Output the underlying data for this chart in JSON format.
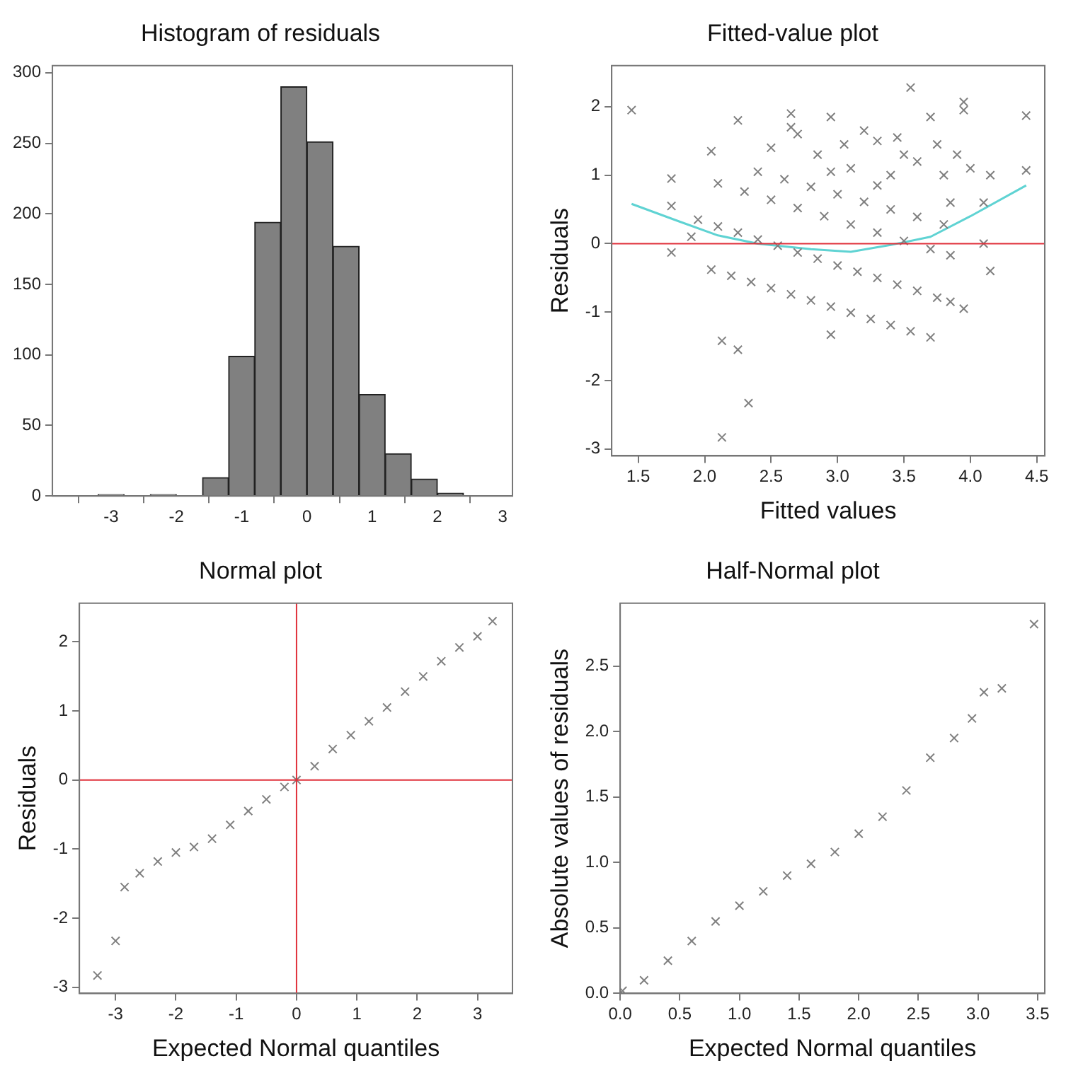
{
  "chart_data": [
    {
      "type": "histogram",
      "title": "Histogram of residuals",
      "color": "#808080",
      "bins": [
        -3.2,
        -2.8,
        -2.4,
        -2.0,
        -1.6,
        -1.2,
        -0.8,
        -0.4,
        0,
        0.4,
        0.8,
        1.2,
        1.6,
        2.0,
        2.4
      ],
      "values": [
        1,
        0,
        1,
        0,
        13,
        99,
        194,
        290,
        251,
        177,
        72,
        30,
        12,
        2
      ],
      "xlim": [
        -3.9,
        3.15
      ],
      "xticks": [
        -3,
        -2,
        -1,
        0,
        1,
        2,
        3
      ],
      "ylim": [
        0,
        305
      ],
      "yticks": [
        0,
        50,
        100,
        150,
        200,
        250,
        300
      ]
    },
    {
      "type": "scatter",
      "title": "Fitted-value plot",
      "xlabel": "Fitted values",
      "ylabel": "Residuals",
      "xlim": [
        1.3,
        4.56
      ],
      "xticks": [
        1.5,
        {
          "value": 2,
          "label": "2.0"
        },
        2.5,
        {
          "value": 3,
          "label": "3.0"
        },
        3.5,
        {
          "value": 4,
          "label": "4.0"
        },
        4.5
      ],
      "ylim": [
        -3.1,
        2.6
      ],
      "yticks": [
        -3,
        -2,
        -1,
        0,
        1,
        2
      ],
      "ref_lines": [
        {
          "axis": "y",
          "value": 0,
          "color": "#e0303a"
        }
      ],
      "series": [
        {
          "type": "scatter",
          "marker": "cross",
          "color": "#808080",
          "x": [
            2.05,
            2.2,
            2.35,
            2.5,
            2.65,
            2.8,
            2.95,
            3.1,
            3.25,
            3.4,
            3.55,
            3.7,
            1.95,
            2.1,
            2.25,
            2.4,
            2.55,
            2.7,
            2.85,
            3.0,
            3.15,
            3.3,
            3.45,
            3.6,
            3.75,
            3.85,
            2.1,
            2.3,
            2.5,
            2.7,
            2.9,
            3.1,
            3.3,
            3.5,
            3.7,
            3.85,
            2.4,
            2.6,
            2.8,
            3.0,
            3.2,
            3.4,
            3.6,
            3.8,
            2.65,
            2.7,
            2.85,
            3.05,
            3.2,
            3.3,
            3.45,
            3.5,
            3.4,
            3.6,
            3.75,
            3.8,
            3.9,
            3.85,
            3.3,
            3.1,
            2.5,
            2.95,
            1.45,
            1.75,
            1.75,
            1.75,
            2.13,
            2.25,
            2.33,
            2.13,
            3.55,
            4.42,
            4.42,
            3.95,
            3.95,
            2.25,
            2.05,
            2.65,
            2.95,
            3.7,
            1.9,
            4.15,
            4.1,
            3.95,
            4.0,
            4.15,
            4.1,
            2.95
          ],
          "values": [
            -0.38,
            -0.47,
            -0.56,
            -0.65,
            -0.74,
            -0.83,
            -0.92,
            -1.01,
            -1.1,
            -1.19,
            -1.28,
            -1.37,
            0.35,
            0.25,
            0.16,
            0.06,
            -0.03,
            -0.13,
            -0.22,
            -0.32,
            -0.41,
            -0.5,
            -0.6,
            -0.69,
            -0.79,
            -0.85,
            0.88,
            0.76,
            0.64,
            0.52,
            0.4,
            0.28,
            0.16,
            0.04,
            -0.08,
            -0.17,
            1.05,
            0.94,
            0.83,
            0.72,
            0.61,
            0.5,
            0.39,
            0.28,
            1.7,
            1.6,
            1.3,
            1.45,
            1.65,
            1.5,
            1.55,
            1.3,
            1.0,
            1.2,
            1.45,
            1.0,
            1.3,
            0.6,
            0.85,
            1.1,
            1.4,
            1.05,
            1.95,
            0.95,
            0.55,
            -0.13,
            -1.42,
            -1.55,
            -2.33,
            -2.83,
            2.28,
            1.87,
            1.07,
            2.07,
            1.95,
            1.8,
            1.35,
            1.9,
            1.85,
            1.85,
            0.1,
            -0.4,
            0.0,
            -0.95,
            1.1,
            1.0,
            0.6,
            -1.33
          ]
        },
        {
          "type": "line",
          "color": "#5fd3d3",
          "x": [
            1.45,
            1.8,
            2.1,
            2.4,
            2.8,
            3.1,
            3.4,
            3.7,
            4.0,
            4.42
          ],
          "values": [
            0.58,
            0.33,
            0.12,
            0.0,
            -0.08,
            -0.12,
            -0.02,
            0.1,
            0.4,
            0.85
          ]
        }
      ]
    },
    {
      "type": "scatter",
      "title": "Normal plot",
      "xlabel": "Expected Normal quantiles",
      "ylabel": "Residuals",
      "marker": "cross",
      "xlim": [
        -3.6,
        3.58
      ],
      "xticks": [
        -3,
        -2,
        -1,
        0,
        1,
        2,
        3
      ],
      "ylim": [
        -3.09,
        2.56
      ],
      "yticks": [
        -3,
        -2,
        -1,
        0,
        1,
        2
      ],
      "ref_lines": [
        {
          "axis": "y",
          "value": 0,
          "color": "#e0303a"
        },
        {
          "axis": "x",
          "value": 0,
          "color": "#e0303a"
        }
      ],
      "series": [
        {
          "type": "scatter",
          "color": "#808080",
          "x": [
            -3.3,
            -3.0,
            -2.85,
            -2.6,
            -2.3,
            -2.0,
            -1.7,
            -1.4,
            -1.1,
            -0.8,
            -0.5,
            -0.2,
            0,
            0.3,
            0.6,
            0.9,
            1.2,
            1.5,
            1.8,
            2.1,
            2.4,
            2.7,
            3.0,
            3.25
          ],
          "values": [
            -2.83,
            -2.33,
            -1.55,
            -1.35,
            -1.18,
            -1.05,
            -0.97,
            -0.85,
            -0.65,
            -0.45,
            -0.28,
            -0.1,
            0,
            0.2,
            0.45,
            0.65,
            0.85,
            1.05,
            1.28,
            1.5,
            1.72,
            1.92,
            2.08,
            2.3
          ]
        }
      ]
    },
    {
      "type": "scatter",
      "title": "Half-Normal plot",
      "xlabel": "Expected Normal quantiles",
      "ylabel": "Absolute values of residuals",
      "marker": "cross",
      "xlim": [
        0,
        3.56
      ],
      "xticks": [
        {
          "value": 0,
          "label": "0.0"
        },
        0.5,
        {
          "value": 1,
          "label": "1.0"
        },
        1.5,
        {
          "value": 2,
          "label": "2.0"
        },
        2.5,
        {
          "value": 3,
          "label": "3.0"
        },
        3.5
      ],
      "ylim": [
        0,
        2.98
      ],
      "yticks": [
        {
          "value": 0,
          "label": "0.0"
        },
        0.5,
        {
          "value": 1,
          "label": "1.0"
        },
        1.5,
        {
          "value": 2,
          "label": "2.0"
        },
        2.5
      ],
      "series": [
        {
          "type": "scatter",
          "color": "#808080",
          "x": [
            0.02,
            0.2,
            0.4,
            0.6,
            0.8,
            1.0,
            1.2,
            1.4,
            1.6,
            1.8,
            2.0,
            2.2,
            2.4,
            2.6,
            2.8,
            2.95,
            3.05,
            3.2,
            3.47
          ],
          "values": [
            0.02,
            0.1,
            0.25,
            0.4,
            0.55,
            0.67,
            0.78,
            0.9,
            0.99,
            1.08,
            1.22,
            1.35,
            1.55,
            1.8,
            1.95,
            2.1,
            2.3,
            2.33,
            2.82
          ]
        }
      ]
    }
  ]
}
